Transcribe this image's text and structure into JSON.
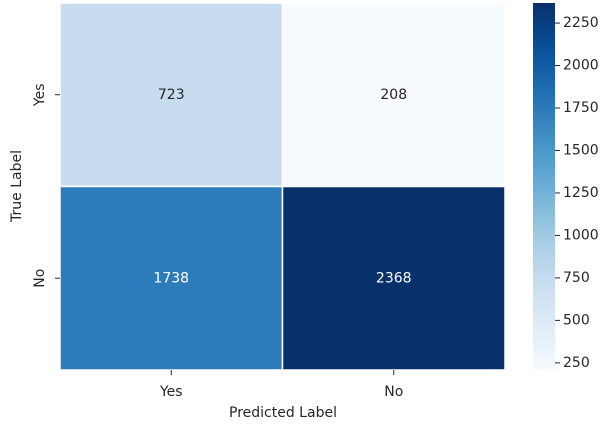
{
  "chart_data": {
    "type": "heatmap",
    "x_categories": [
      "Yes",
      "No"
    ],
    "y_categories": [
      "Yes",
      "No"
    ],
    "values": [
      [
        723,
        208
      ],
      [
        1738,
        2368
      ]
    ],
    "xlabel": "Predicted Label",
    "ylabel": "True Label",
    "colormap": [
      "#f7fbff",
      "#deebf7",
      "#c6dbef",
      "#9ecae1",
      "#6baed6",
      "#4292c6",
      "#2171b5",
      "#08519c",
      "#08306b"
    ],
    "clim": [
      208,
      2368
    ],
    "cticks": [
      250,
      500,
      750,
      1000,
      1250,
      1500,
      1750,
      2000,
      2250
    ]
  }
}
